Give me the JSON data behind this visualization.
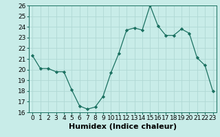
{
  "x": [
    0,
    1,
    2,
    3,
    4,
    5,
    6,
    7,
    8,
    9,
    10,
    11,
    12,
    13,
    14,
    15,
    16,
    17,
    18,
    19,
    20,
    21,
    22,
    23
  ],
  "y": [
    21.3,
    20.1,
    20.1,
    19.8,
    19.8,
    18.1,
    16.6,
    16.3,
    16.5,
    17.5,
    19.7,
    21.5,
    23.7,
    23.9,
    23.7,
    26.0,
    24.1,
    23.2,
    23.2,
    23.8,
    23.4,
    21.1,
    20.4,
    18.0
  ],
  "ylim": [
    16,
    26
  ],
  "yticks": [
    16,
    17,
    18,
    19,
    20,
    21,
    22,
    23,
    24,
    25,
    26
  ],
  "xticks": [
    0,
    1,
    2,
    3,
    4,
    5,
    6,
    7,
    8,
    9,
    10,
    11,
    12,
    13,
    14,
    15,
    16,
    17,
    18,
    19,
    20,
    21,
    22,
    23
  ],
  "xlabel": "Humidex (Indice chaleur)",
  "line_color": "#1a7060",
  "marker": "D",
  "marker_size": 2.2,
  "bg_color": "#c8ece8",
  "grid_color": "#b0d8d4",
  "tick_label_fontsize": 6.5,
  "xlabel_fontsize": 8.0,
  "title": ""
}
